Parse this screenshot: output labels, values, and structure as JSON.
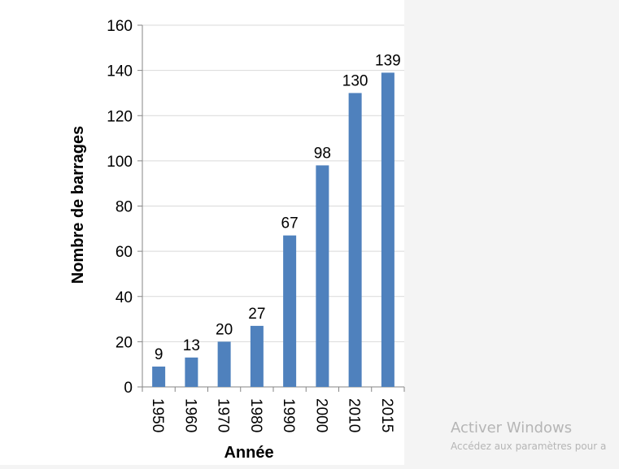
{
  "chart_data": {
    "type": "bar",
    "title": "",
    "xlabel": "Année",
    "ylabel": "Nombre de barrages",
    "categories": [
      "1950",
      "1960",
      "1970",
      "1980",
      "1990",
      "2000",
      "2010",
      "2015"
    ],
    "values": [
      9,
      13,
      20,
      27,
      67,
      98,
      130,
      139
    ],
    "data_labels": [
      "9",
      "13",
      "20",
      "27",
      "67",
      "98",
      "130",
      "139"
    ],
    "ylim": [
      0,
      160
    ],
    "yticks": [
      0,
      20,
      40,
      60,
      80,
      100,
      120,
      140,
      160
    ],
    "ytick_labels": [
      "0",
      "20",
      "40",
      "60",
      "80",
      "100",
      "120",
      "140",
      "160"
    ],
    "grid": true,
    "legend": "none",
    "bar_color": "#4f81bd"
  },
  "watermark": {
    "title": "Activer Windows",
    "subtitle": "Accédez aux paramètres pour a"
  }
}
